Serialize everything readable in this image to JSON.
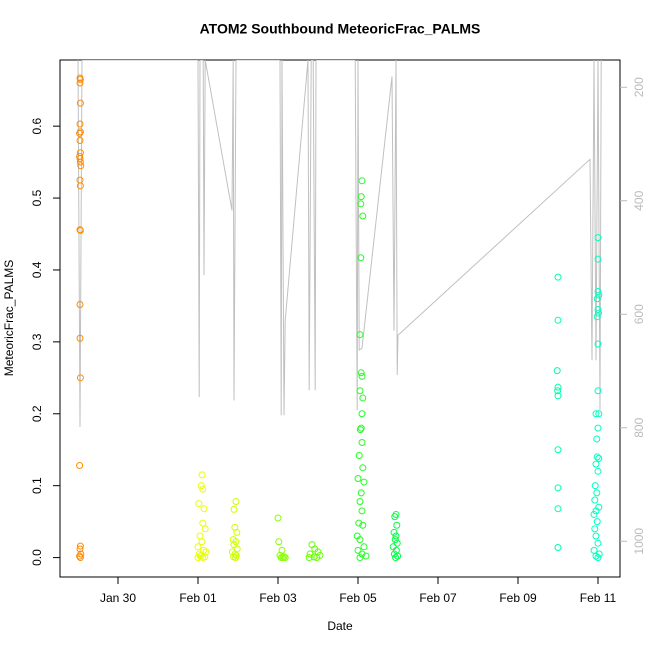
{
  "chart_data": {
    "type": "scatter",
    "title": "ATOM2 Southbound MeteoricFrac_PALMS",
    "x_label": "Date",
    "y_label": "MeteoricFrac_PALMS",
    "xlim": [
      28.55,
      42.55
    ],
    "xticks": [
      {
        "value": 30,
        "label": "Jan 30"
      },
      {
        "value": 32,
        "label": "Feb 01"
      },
      {
        "value": 34,
        "label": "Feb 03"
      },
      {
        "value": 36,
        "label": "Feb 05"
      },
      {
        "value": 38,
        "label": "Feb 07"
      },
      {
        "value": 40,
        "label": "Feb 09"
      },
      {
        "value": 42,
        "label": "Feb 11"
      }
    ],
    "ylim": [
      -0.027,
      0.692
    ],
    "yticks": [
      {
        "value": 0,
        "label": "0.0"
      },
      0.1,
      0.2,
      0.3,
      0.4,
      0.5,
      0.6
    ],
    "y2lim": [
      1063,
      152
    ],
    "y2ticks": [
      200,
      400,
      600,
      800,
      1000
    ],
    "y2_color": "#bbbbbb",
    "series": [
      {
        "color": "#FF8C00",
        "x": [
          29.05,
          29.06,
          29.05,
          29.06,
          29.05,
          29.04,
          29.06,
          29.05,
          29.06,
          29.04,
          29.05,
          29.06,
          29.07,
          29.05,
          29.06,
          29.05,
          29.06,
          29.05,
          29.05,
          29.06,
          29.04,
          29.06,
          29.05,
          29.07,
          29.04,
          29.06
        ],
        "values": [
          0.667,
          0.665,
          0.66,
          0.632,
          0.603,
          0.59,
          0.592,
          0.58,
          0.563,
          0.558,
          0.555,
          0.55,
          0.545,
          0.525,
          0.517,
          0.456,
          0.455,
          0.352,
          0.305,
          0.25,
          0.128,
          0.016,
          0.012,
          0.005,
          0.002,
          0
        ]
      },
      {
        "color": "#E8FF00",
        "x": [
          32.1,
          32.08,
          32.12,
          32.02,
          32.15,
          32.12,
          32.18,
          32.05,
          32.1,
          32.0,
          32.14,
          32.2,
          32.03,
          32.08,
          32.17,
          32.0,
          32.12,
          32.06
        ],
        "values": [
          0.115,
          0.1,
          0.095,
          0.075,
          0.068,
          0.048,
          0.04,
          0.03,
          0.022,
          0.015,
          0.01,
          0.008,
          0.005,
          0.003,
          0.001,
          0,
          0,
          0.002
        ]
      },
      {
        "color": "#CCFF00",
        "x": [
          32.95,
          32.9,
          32.92,
          32.97,
          32.88,
          32.95,
          32.9,
          32.98,
          32.86,
          32.93,
          32.96,
          32.89,
          32.94
        ],
        "values": [
          0.078,
          0.067,
          0.042,
          0.035,
          0.025,
          0.022,
          0.018,
          0.012,
          0.008,
          0.005,
          0.003,
          0.001,
          0
        ]
      },
      {
        "color": "#88FF00",
        "x": [
          34.0,
          34.02,
          34.1,
          34.05,
          34.15,
          34.08,
          34.18,
          34.12
        ],
        "values": [
          0.055,
          0.022,
          0.01,
          0.003,
          0.001,
          0,
          0,
          0
        ]
      },
      {
        "color": "#66FF00",
        "x": [
          34.85,
          34.92,
          35.0,
          34.8,
          35.05,
          34.9,
          34.78,
          34.97
        ],
        "values": [
          0.018,
          0.012,
          0.008,
          0.005,
          0.003,
          0.001,
          0,
          0
        ]
      },
      {
        "color": "#22FF22",
        "x": [
          36.1,
          36.08,
          36.07,
          36.12,
          36.07,
          36.05,
          36.08,
          36.1,
          36.05,
          36.12,
          36.1,
          36.08,
          36.06,
          36.1,
          36.03,
          36.12,
          36.0,
          36.15,
          36.08,
          36.05,
          36.1,
          36.02,
          36.12,
          35.98,
          36.05,
          36.15,
          36.0,
          36.1,
          36.2,
          36.05
        ],
        "values": [
          0.524,
          0.502,
          0.492,
          0.475,
          0.417,
          0.31,
          0.257,
          0.252,
          0.232,
          0.222,
          0.2,
          0.18,
          0.178,
          0.16,
          0.142,
          0.125,
          0.11,
          0.105,
          0.09,
          0.078,
          0.065,
          0.048,
          0.045,
          0.03,
          0.025,
          0.015,
          0.01,
          0.005,
          0.002,
          0
        ]
      },
      {
        "color": "#00FF44",
        "x": [
          36.95,
          36.92,
          36.97,
          36.9,
          36.95,
          36.93,
          36.98,
          36.88,
          36.96,
          36.91,
          36.99,
          36.94
        ],
        "values": [
          0.06,
          0.057,
          0.045,
          0.035,
          0.03,
          0.025,
          0.02,
          0.015,
          0.01,
          0.005,
          0.002,
          0
        ]
      },
      {
        "color": "#00FFAA",
        "x": [
          41.0,
          41.0,
          40.98,
          41.0,
          40.99,
          41.0,
          41.0,
          41.0,
          41.0,
          41.0
        ],
        "values": [
          0.39,
          0.33,
          0.26,
          0.237,
          0.232,
          0.225,
          0.15,
          0.097,
          0.068,
          0.014
        ]
      },
      {
        "color": "#00FFBF",
        "x": [
          42.0,
          42.0,
          42.0,
          42.02,
          41.98,
          42.0,
          42.01,
          41.98,
          42.0,
          42.0,
          41.95,
          42.02,
          42.0,
          41.97,
          41.98,
          42.02,
          41.95,
          42.0,
          41.93,
          41.97,
          41.92,
          42.02,
          41.95,
          41.9,
          41.98,
          41.92,
          41.95,
          42.0,
          41.9,
          42.03,
          41.95,
          42.0
        ],
        "values": [
          0.445,
          0.415,
          0.37,
          0.365,
          0.36,
          0.345,
          0.34,
          0.335,
          0.297,
          0.232,
          0.2,
          0.2,
          0.18,
          0.165,
          0.14,
          0.138,
          0.13,
          0.12,
          0.1,
          0.09,
          0.08,
          0.07,
          0.065,
          0.06,
          0.05,
          0.04,
          0.03,
          0.02,
          0.01,
          0.005,
          0.002,
          0
        ]
      },
      {
        "type": "line",
        "axis": "y2",
        "color": "#c0c0c0",
        "x": [
          29.0,
          29.05,
          29.1,
          30.25,
          32.0,
          32.03,
          32.05,
          32.13,
          32.15,
          32.18,
          32.85,
          32.88,
          32.9,
          32.95,
          32.98,
          34.05,
          34.08,
          34.1,
          34.15,
          34.18,
          34.75,
          34.78,
          34.83,
          34.88,
          34.93,
          34.95,
          35.0,
          35.93,
          35.98,
          36.0,
          36.03,
          36.1,
          36.85,
          36.9,
          36.95,
          36.98,
          37.0,
          41.8,
          41.85,
          41.9,
          41.95,
          42.0,
          42.05,
          42.08
        ],
        "values": [
          152,
          799,
          152,
          152,
          152,
          746,
          152,
          152,
          531,
          152,
          417,
          152,
          752,
          152,
          152,
          152,
          778,
          152,
          778,
          611,
          152,
          734,
          152,
          152,
          734,
          152,
          152,
          152,
          769,
          152,
          663,
          660,
          181,
          629,
          152,
          707,
          637,
          327,
          681,
          152,
          681,
          152,
          769,
          152
        ]
      }
    ]
  }
}
